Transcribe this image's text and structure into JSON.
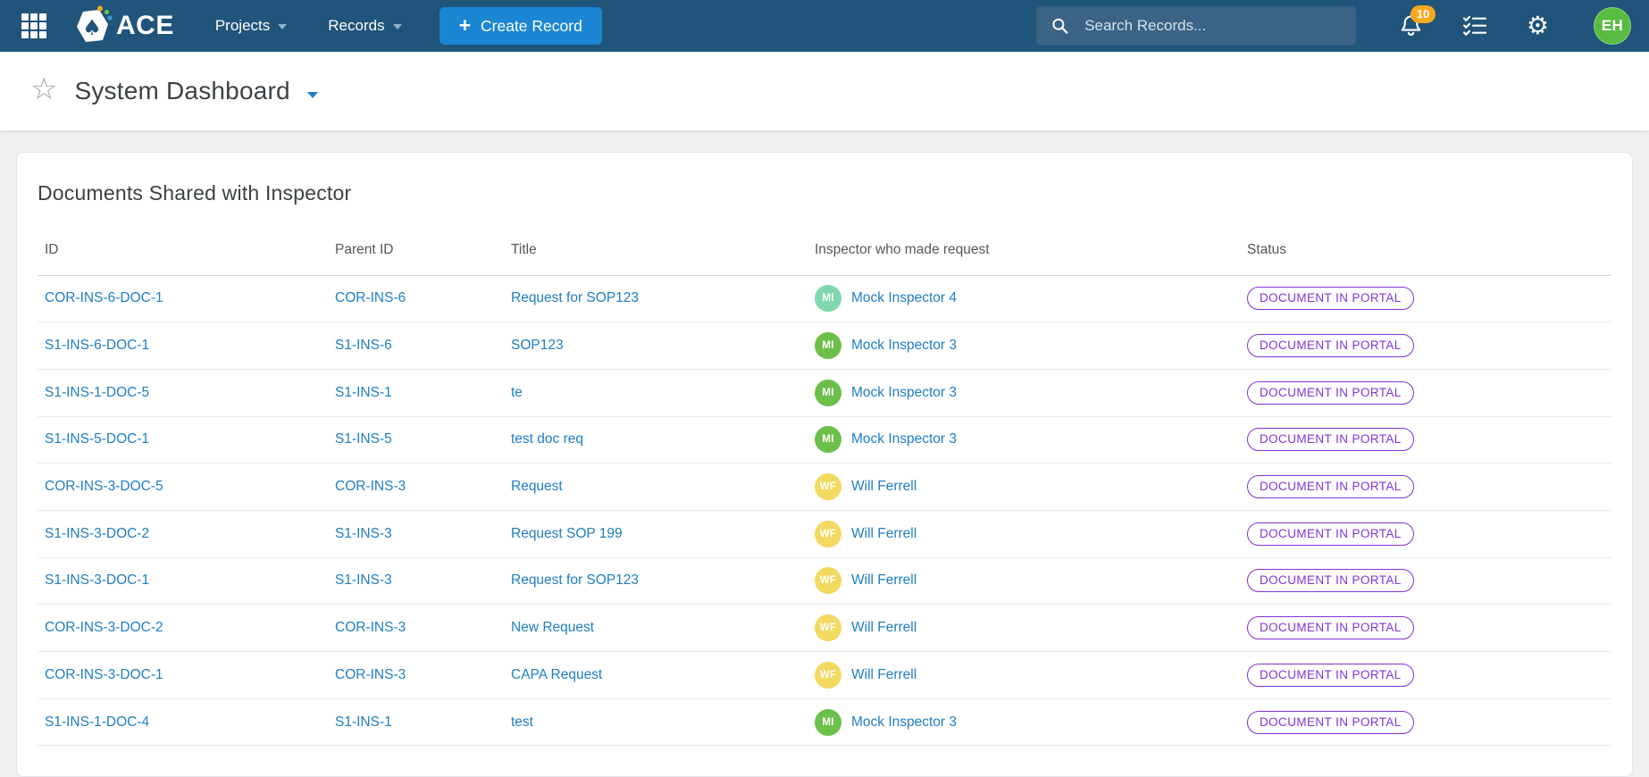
{
  "nav": {
    "brand": "ACE",
    "menus": [
      {
        "label": "Projects"
      },
      {
        "label": "Records"
      }
    ],
    "create_plus": "+",
    "create_label": "Create Record",
    "search_placeholder": "Search Records...",
    "notification_count": "10",
    "user_initials": "EH"
  },
  "page": {
    "title": "System Dashboard"
  },
  "panel": {
    "title": "Documents Shared with Inspector",
    "columns": [
      "ID",
      "Parent ID",
      "Title",
      "Inspector who made request",
      "Status"
    ],
    "rows": [
      {
        "id": "COR-INS-6-DOC-1",
        "parent_id": "COR-INS-6",
        "title": "Request for SOP123",
        "inspector": "Mock Inspector 4",
        "initials": "MI",
        "avatar_color": "#7FD7B0",
        "status": "DOCUMENT IN PORTAL"
      },
      {
        "id": "S1-INS-6-DOC-1",
        "parent_id": "S1-INS-6",
        "title": "SOP123",
        "inspector": "Mock Inspector 3",
        "initials": "MI",
        "avatar_color": "#6CC04A",
        "status": "DOCUMENT IN PORTAL"
      },
      {
        "id": "S1-INS-1-DOC-5",
        "parent_id": "S1-INS-1",
        "title": "te",
        "inspector": "Mock Inspector 3",
        "initials": "MI",
        "avatar_color": "#6CC04A",
        "status": "DOCUMENT IN PORTAL"
      },
      {
        "id": "S1-INS-5-DOC-1",
        "parent_id": "S1-INS-5",
        "title": "test doc req",
        "inspector": "Mock Inspector 3",
        "initials": "MI",
        "avatar_color": "#6CC04A",
        "status": "DOCUMENT IN PORTAL"
      },
      {
        "id": "COR-INS-3-DOC-5",
        "parent_id": "COR-INS-3",
        "title": "Request",
        "inspector": "Will Ferrell",
        "initials": "WF",
        "avatar_color": "#F2D95F",
        "status": "DOCUMENT IN PORTAL"
      },
      {
        "id": "S1-INS-3-DOC-2",
        "parent_id": "S1-INS-3",
        "title": "Request SOP 199",
        "inspector": "Will Ferrell",
        "initials": "WF",
        "avatar_color": "#F2D95F",
        "status": "DOCUMENT IN PORTAL"
      },
      {
        "id": "S1-INS-3-DOC-1",
        "parent_id": "S1-INS-3",
        "title": "Request for SOP123",
        "inspector": "Will Ferrell",
        "initials": "WF",
        "avatar_color": "#F2D95F",
        "status": "DOCUMENT IN PORTAL"
      },
      {
        "id": "COR-INS-3-DOC-2",
        "parent_id": "COR-INS-3",
        "title": "New Request",
        "inspector": "Will Ferrell",
        "initials": "WF",
        "avatar_color": "#F2D95F",
        "status": "DOCUMENT IN PORTAL"
      },
      {
        "id": "COR-INS-3-DOC-1",
        "parent_id": "COR-INS-3",
        "title": "CAPA Request",
        "inspector": "Will Ferrell",
        "initials": "WF",
        "avatar_color": "#F2D95F",
        "status": "DOCUMENT IN PORTAL"
      },
      {
        "id": "S1-INS-1-DOC-4",
        "parent_id": "S1-INS-1",
        "title": "test",
        "inspector": "Mock Inspector 3",
        "initials": "MI",
        "avatar_color": "#6CC04A",
        "status": "DOCUMENT IN PORTAL"
      }
    ]
  },
  "colors": {
    "navbar_blue": "#20547A",
    "accent_blue": "#1B86D2",
    "link_blue": "#1E7EC4",
    "status_purple": "#8333D8",
    "notification_orange": "#F8A81D",
    "user_avatar_green": "#58BB42"
  }
}
